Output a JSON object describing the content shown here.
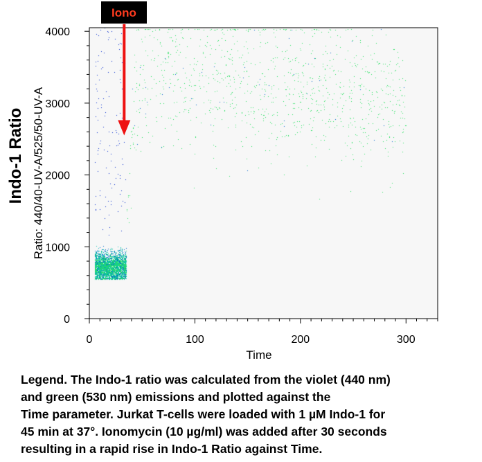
{
  "colors": {
    "annotation_bg": "#000000",
    "annotation_text": "#ff3b1f",
    "arrow": "#ee1111",
    "plot_bg": "#f7f7f7",
    "density_low": "#0000cc",
    "density_mid": "#00b4c8",
    "density_high": "#28e060"
  },
  "chart_data": {
    "type": "scatter",
    "subtype": "density",
    "xlabel": "Time",
    "ylabel": "Ratio: 440/40-UV-A/525/50-UV-A",
    "side_title": "Indo-1 Ratio",
    "xlim": [
      0,
      330
    ],
    "ylim": [
      0,
      4050
    ],
    "x_ticks": [
      0,
      100,
      200,
      300
    ],
    "y_ticks": [
      0,
      1000,
      2000,
      3000,
      4000
    ],
    "annotation": {
      "text": "Iono",
      "x": 33,
      "y_from": 4100,
      "y_to": 2550
    },
    "populations": [
      {
        "name": "",
        "x_range": [
          5,
          35
        ],
        "y_mean": 720,
        "y_spread": 200,
        "y_clip": [
          550,
          1150
        ]
      },
      {
        "name": "",
        "x_range": [
          35,
          300
        ],
        "peak_y": 3100,
        "settled_y": 2500,
        "saturation_y": 4020
      }
    ]
  },
  "legend": {
    "lines": [
      "Legend. The Indo-1 ratio was calculated from the violet (440 nm)",
      "and green (530 nm) emissions and plotted against the",
      "Time parameter. Jurkat T-cells were loaded with 1 µM Indo-1 for",
      "45 min at 37°. Ionomycin (10 µg/ml) was added after 30 seconds",
      "resulting in a rapid rise in Indo-1 Ratio against Time."
    ]
  }
}
